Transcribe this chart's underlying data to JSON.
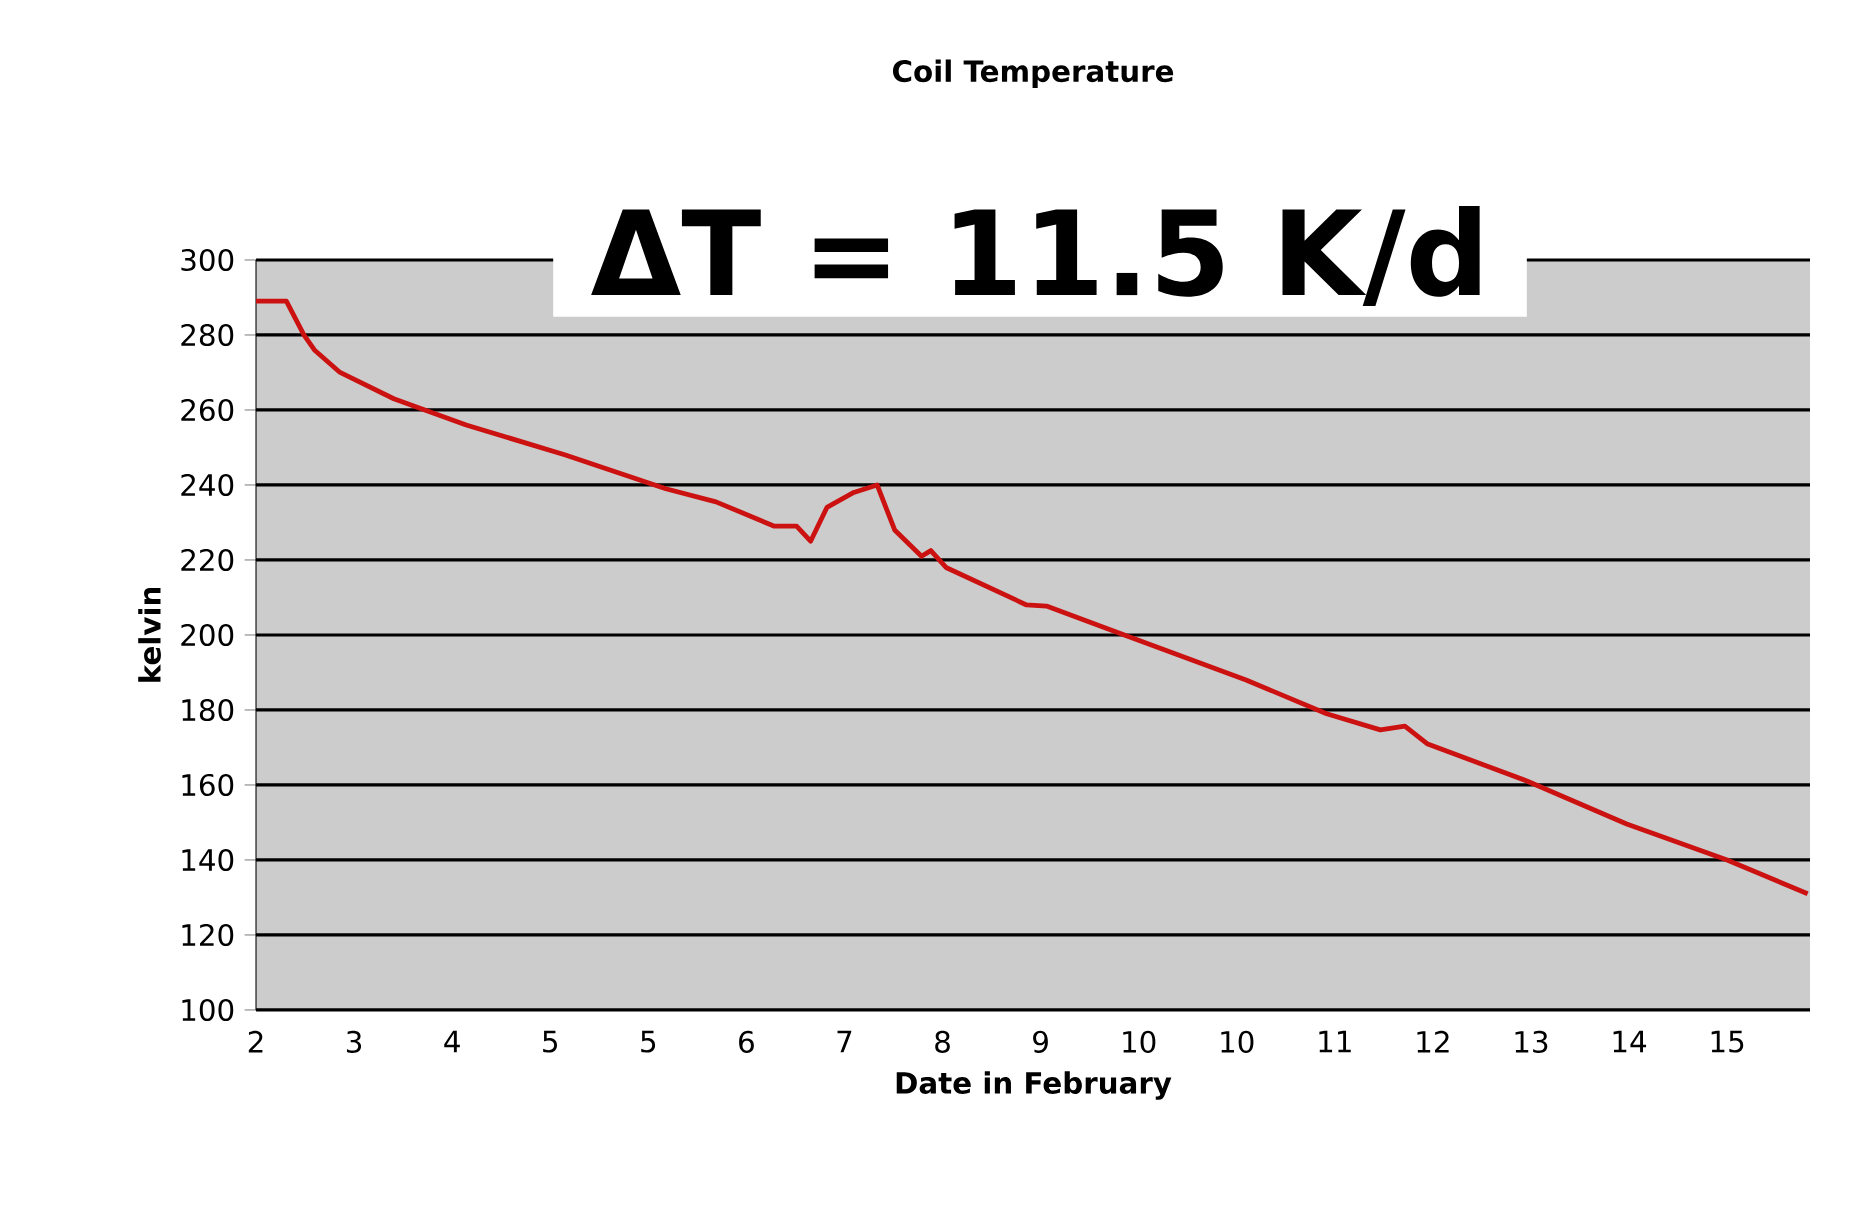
{
  "chart_data": {
    "type": "line",
    "title": "Coil Temperature",
    "xlabel": "Date in February",
    "ylabel": "kelvin",
    "annotations": [
      "ΔT = 11.5 K/d"
    ],
    "xlim": [
      2,
      15.31
    ],
    "xticks": [
      {
        "value": 2,
        "label": "2"
      },
      {
        "value": 2.84,
        "label": "3"
      },
      {
        "value": 3.68,
        "label": "4"
      },
      {
        "value": 4.52,
        "label": "5"
      },
      {
        "value": 5.36,
        "label": "5"
      },
      {
        "value": 6.2,
        "label": "6"
      },
      {
        "value": 7.04,
        "label": "7"
      },
      {
        "value": 7.88,
        "label": "8"
      },
      {
        "value": 8.72,
        "label": "9"
      },
      {
        "value": 9.56,
        "label": "10"
      },
      {
        "value": 10.4,
        "label": "10"
      },
      {
        "value": 11.24,
        "label": "11"
      },
      {
        "value": 12.08,
        "label": "12"
      },
      {
        "value": 12.92,
        "label": "13"
      },
      {
        "value": 13.76,
        "label": "14"
      },
      {
        "value": 14.6,
        "label": "15"
      }
    ],
    "ylim": [
      100,
      300
    ],
    "yticks": [
      100,
      120,
      140,
      160,
      180,
      200,
      220,
      240,
      260,
      280,
      300
    ],
    "grid": "y",
    "series": [
      {
        "color": "#cc1111",
        "x": [
          2,
          2.26,
          2.41,
          2.5,
          2.72,
          3.18,
          3.8,
          4.65,
          5.51,
          5.94,
          6.44,
          6.63,
          6.75,
          6.89,
          7.12,
          7.32,
          7.47,
          7.7,
          7.78,
          7.91,
          8.6,
          8.77,
          9.46,
          10.48,
          11.17,
          11.63,
          11.84,
          12.03,
          12.89,
          13.74,
          14.6,
          15.29
        ],
        "values": [
          289,
          289,
          280,
          276,
          270,
          263,
          256,
          248,
          239,
          235.5,
          229,
          229,
          225,
          234,
          238,
          240,
          228,
          221,
          222.5,
          218,
          208,
          207.7,
          199.7,
          188,
          179,
          174.7,
          175.7,
          171,
          161,
          149.6,
          140,
          131
        ]
      }
    ]
  }
}
